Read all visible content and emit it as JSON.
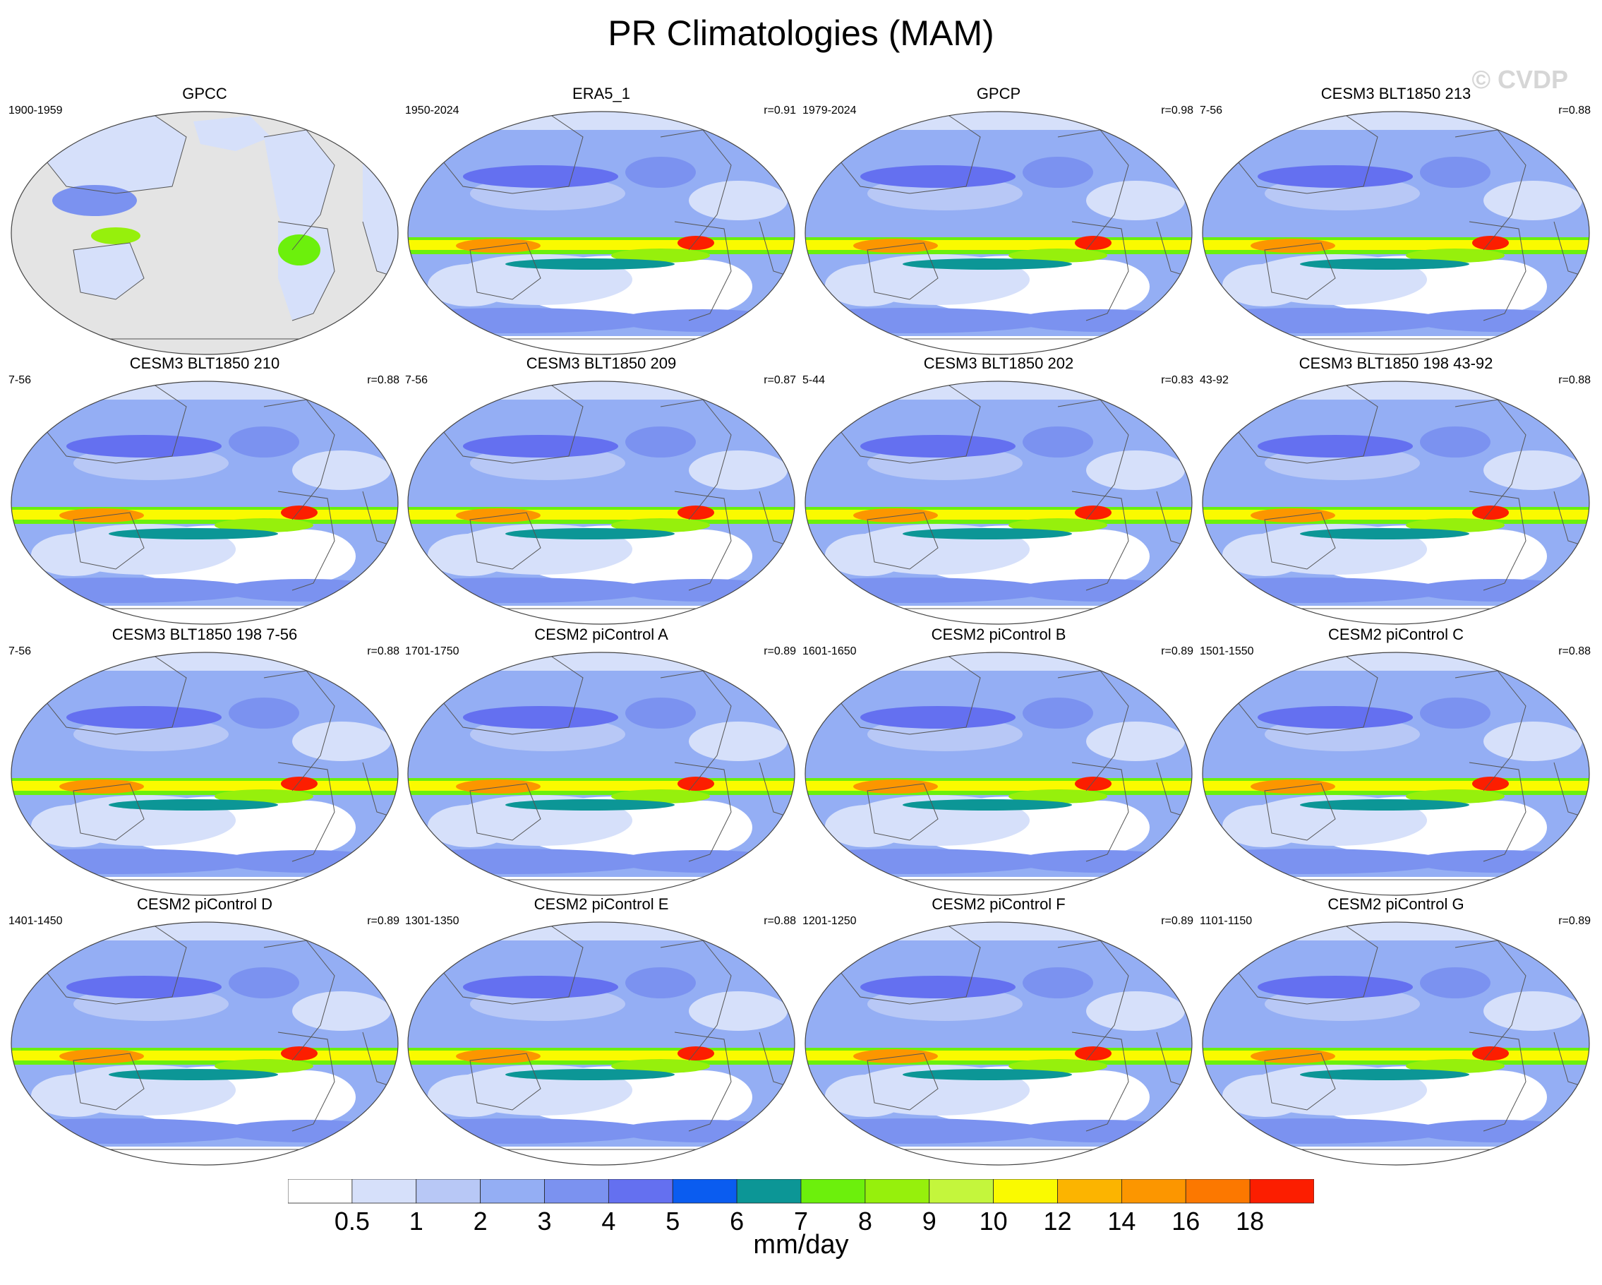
{
  "title": "PR Climatologies (MAM)",
  "watermark": "© CVDP",
  "panels": [
    {
      "title": "GPCC",
      "period": "1900-1959",
      "corr": "",
      "obs_land_only": true
    },
    {
      "title": "ERA5_1",
      "period": "1950-2024",
      "corr": "r=0.91"
    },
    {
      "title": "GPCP",
      "period": "1979-2024",
      "corr": "r=0.98"
    },
    {
      "title": "CESM3 BLT1850 213",
      "period": "7-56",
      "corr": "r=0.88"
    },
    {
      "title": "CESM3 BLT1850 210",
      "period": "7-56",
      "corr": "r=0.88"
    },
    {
      "title": "CESM3 BLT1850 209",
      "period": "7-56",
      "corr": "r=0.87"
    },
    {
      "title": "CESM3 BLT1850 202",
      "period": "5-44",
      "corr": "r=0.83"
    },
    {
      "title": "CESM3 BLT1850 198 43-92",
      "period": "43-92",
      "corr": "r=0.88"
    },
    {
      "title": "CESM3 BLT1850 198 7-56",
      "period": "7-56",
      "corr": "r=0.88"
    },
    {
      "title": "CESM2 piControl A",
      "period": "1701-1750",
      "corr": "r=0.89"
    },
    {
      "title": "CESM2 piControl B",
      "period": "1601-1650",
      "corr": "r=0.89"
    },
    {
      "title": "CESM2 piControl C",
      "period": "1501-1550",
      "corr": "r=0.88"
    },
    {
      "title": "CESM2 piControl D",
      "period": "1401-1450",
      "corr": "r=0.89"
    },
    {
      "title": "CESM2 piControl E",
      "period": "1301-1350",
      "corr": "r=0.88"
    },
    {
      "title": "CESM2 piControl F",
      "period": "1201-1250",
      "corr": "r=0.89"
    },
    {
      "title": "CESM2 piControl G",
      "period": "1101-1150",
      "corr": "r=0.89"
    }
  ],
  "colorbar": {
    "unit": "mm/day",
    "labels": [
      "0.5",
      "1",
      "2",
      "3",
      "4",
      "5",
      "6",
      "7",
      "8",
      "9",
      "10",
      "12",
      "14",
      "16",
      "18"
    ],
    "colors": [
      "#ffffff",
      "#d6e0fa",
      "#b8c8f6",
      "#94aef4",
      "#7b92f0",
      "#6470f0",
      "#0a5cf0",
      "#0c9696",
      "#6cf00c",
      "#96f00c",
      "#c4f63c",
      "#fafa00",
      "#fcb400",
      "#fc9600",
      "#fc7800",
      "#fc1e00"
    ]
  },
  "colors": {
    "missing": "#e4e4e4",
    "coast": "#555555",
    "background": "#ffffff"
  }
}
